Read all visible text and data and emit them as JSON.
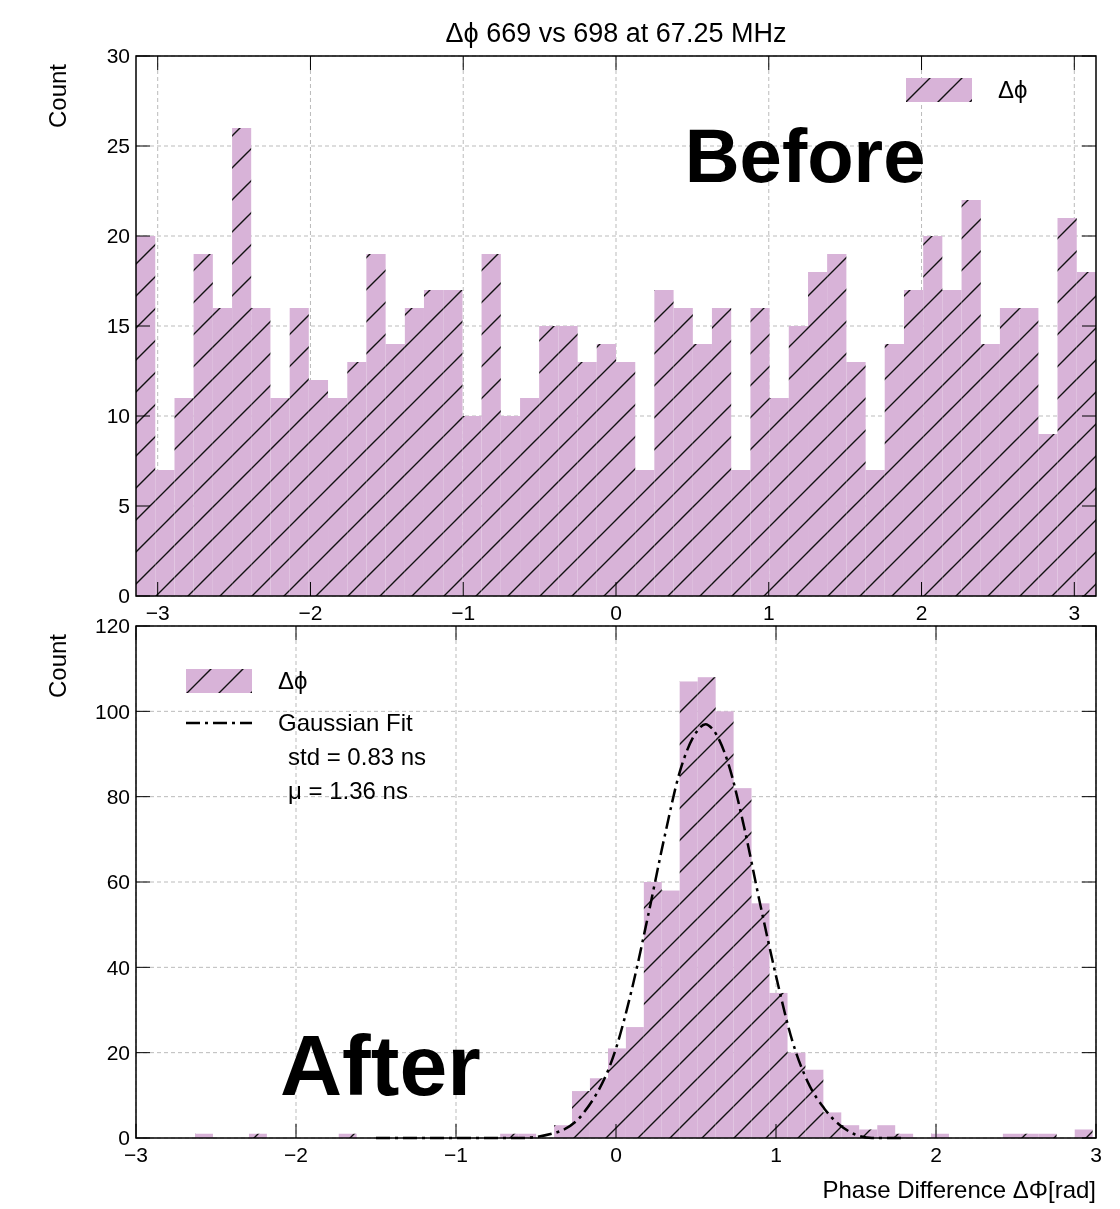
{
  "chart_data": [
    {
      "type": "histogram",
      "title": "Δϕ 669 vs 698 at 67.25 MHz",
      "ylabel": "Count",
      "bins": [
        -3.142,
        -3.016,
        -2.89,
        -2.765,
        -2.639,
        -2.513,
        -2.388,
        -2.262,
        -2.136,
        -2.011,
        -1.885,
        -1.759,
        -1.634,
        -1.508,
        -1.382,
        -1.257,
        -1.131,
        -1.005,
        -0.88,
        -0.754,
        -0.628,
        -0.503,
        -0.377,
        -0.251,
        -0.126,
        0,
        0.126,
        0.251,
        0.377,
        0.503,
        0.628,
        0.754,
        0.88,
        1.005,
        1.131,
        1.257,
        1.382,
        1.508,
        1.634,
        1.759,
        1.885,
        2.011,
        2.136,
        2.262,
        2.388,
        2.513,
        2.639,
        2.765,
        2.89,
        3.016,
        3.142
      ],
      "series": [
        {
          "name": "Δϕ",
          "color": "#d8b3d8",
          "values": [
            20,
            7,
            11,
            19,
            16,
            26,
            16,
            11,
            16,
            12,
            11,
            13,
            19,
            14,
            16,
            17,
            17,
            10,
            19,
            10,
            11,
            15,
            15,
            13,
            14,
            13,
            7,
            17,
            16,
            14,
            16,
            7,
            16,
            11,
            15,
            18,
            19,
            13,
            7,
            14,
            17,
            20,
            17,
            22,
            14,
            16,
            16,
            9,
            21,
            18
          ]
        }
      ],
      "xlim": [
        -3.142,
        3.142
      ],
      "xticks": [
        {
          "value": -3,
          "label": "−3"
        },
        {
          "value": -2,
          "label": "−2"
        },
        {
          "value": -1,
          "label": "−1"
        },
        0,
        1,
        2,
        3
      ],
      "ylim": [
        0,
        30
      ],
      "yticks": [
        0,
        5,
        10,
        15,
        20,
        25,
        30
      ],
      "grid": true,
      "legend": "top right",
      "annotations": [
        "Before"
      ]
    },
    {
      "type": "histogram",
      "xlabel": "Phase Difference ΔΦ[rad]",
      "ylabel": "Count",
      "bins": [
        -2.631,
        -2.519,
        -2.407,
        -2.294,
        -2.182,
        -2.07,
        -1.958,
        -1.846,
        -1.733,
        -1.621,
        -1.509,
        -1.397,
        -1.285,
        -1.172,
        -1.06,
        -0.948,
        -0.836,
        -0.724,
        -0.611,
        -0.499,
        -0.387,
        -0.275,
        -0.163,
        -0.05,
        0.062,
        0.174,
        0.286,
        0.398,
        0.511,
        0.623,
        0.735,
        0.847,
        0.959,
        1.072,
        1.184,
        1.296,
        1.408,
        1.52,
        1.633,
        1.745,
        1.857,
        1.969,
        2.081,
        2.194,
        2.306,
        2.418,
        2.53,
        2.642,
        2.754,
        2.867,
        2.979
      ],
      "series": [
        {
          "name": "Δϕ",
          "color": "#d8b3d8",
          "values": [
            1,
            0,
            0,
            1,
            0,
            0,
            0,
            0,
            1,
            0,
            0,
            0,
            0,
            0,
            0,
            0,
            0,
            1,
            1,
            0,
            3,
            11,
            14,
            21,
            26,
            60,
            58,
            107,
            108,
            100,
            82,
            55,
            34,
            20,
            16,
            6,
            3,
            2,
            3,
            1,
            0,
            1,
            0,
            0,
            0,
            1,
            1,
            1,
            0,
            2
          ]
        },
        {
          "type": "line",
          "name": "Gaussian Fit",
          "color": "#000000",
          "line_style": "dashed",
          "x": [
            -1.5,
            -1,
            -0.6,
            -0.4,
            -0.2,
            0,
            0.1,
            0.2,
            0.3,
            0.4,
            0.5,
            0.56,
            0.6,
            0.7,
            0.8,
            0.9,
            1,
            1.1,
            1.2,
            1.3,
            1.4,
            1.6,
            1.8
          ],
          "values": [
            0,
            0,
            0,
            1,
            6,
            21,
            35,
            52,
            70,
            86,
            95,
            97,
            96,
            88,
            73,
            55,
            38,
            23,
            13,
            7,
            3,
            0,
            0
          ]
        }
      ],
      "xlim": [
        -3,
        3
      ],
      "xticks": [
        {
          "value": -3,
          "label": "−3"
        },
        {
          "value": -2,
          "label": "−2"
        },
        {
          "value": -1,
          "label": "−1"
        },
        0,
        1,
        2,
        3
      ],
      "ylim": [
        0,
        120
      ],
      "yticks": [
        0,
        20,
        40,
        60,
        80,
        100,
        120
      ],
      "grid": true,
      "legend": "top left",
      "annotations": [
        "After",
        "std = 0.83 ns",
        "μ = 1.36 ns"
      ]
    }
  ]
}
